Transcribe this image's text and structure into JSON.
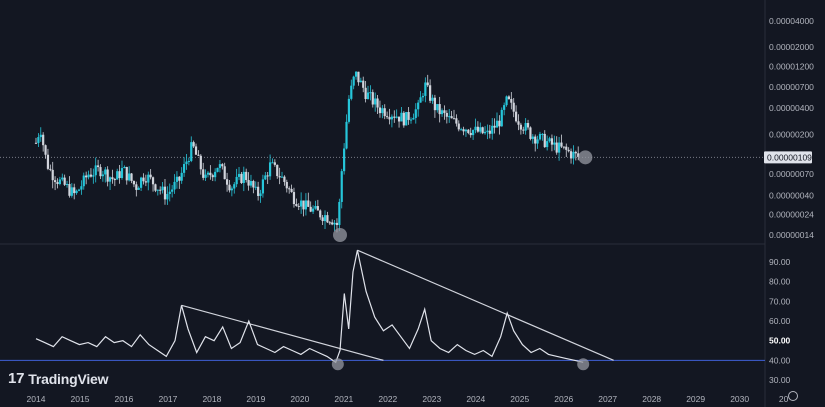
{
  "brand": {
    "logo_text": "TradingView",
    "logo_mark": "17"
  },
  "last_price_label": "0.00000109",
  "colors": {
    "bg": "#131722",
    "up": "#26c6da",
    "down": "#d1d4dc",
    "rsi_line": "#e0e3eb",
    "hline": "#3f5fd6",
    "marker": "#9598a1",
    "last_label_bg": "#e0e3eb"
  },
  "icons": {
    "settings": "gear-icon"
  },
  "chart_data": [
    {
      "type": "candlestick",
      "scale": "log",
      "price_ticks": [
        "0.00004000",
        "0.00002000",
        "0.00001200",
        "0.00000700",
        "0.00000400",
        "0.00000200",
        "0.00000109",
        "0.00000070",
        "0.00000040",
        "0.00000024",
        "0.00000014"
      ],
      "x_ticks": [
        "2014",
        "2015",
        "2016",
        "2017",
        "2018",
        "2019",
        "2020",
        "2021",
        "2022",
        "2023",
        "2024",
        "2025",
        "2026",
        "2027",
        "2028",
        "2029",
        "2030",
        "20"
      ],
      "close_trend": [
        [
          2014.0,
          1.6e-06
        ],
        [
          2014.1,
          2.5e-06
        ],
        [
          2014.2,
          1.2e-06
        ],
        [
          2014.3,
          8e-07
        ],
        [
          2014.5,
          6e-07
        ],
        [
          2014.7,
          5e-07
        ],
        [
          2014.9,
          4e-07
        ],
        [
          2015.2,
          7e-07
        ],
        [
          2015.5,
          8e-07
        ],
        [
          2015.8,
          6e-07
        ],
        [
          2016.0,
          8e-07
        ],
        [
          2016.3,
          5e-07
        ],
        [
          2016.5,
          7e-07
        ],
        [
          2016.8,
          5e-07
        ],
        [
          2017.0,
          4e-07
        ],
        [
          2017.3,
          6e-07
        ],
        [
          2017.6,
          1.5e-06
        ],
        [
          2017.9,
          6e-07
        ],
        [
          2018.2,
          9e-07
        ],
        [
          2018.5,
          5e-07
        ],
        [
          2018.8,
          7e-07
        ],
        [
          2019.1,
          4e-07
        ],
        [
          2019.4,
          9e-07
        ],
        [
          2019.7,
          6e-07
        ],
        [
          2019.9,
          4e-07
        ],
        [
          2020.2,
          3e-07
        ],
        [
          2020.5,
          2.5e-07
        ],
        [
          2020.8,
          2.2e-07
        ],
        [
          2020.95,
          1.8e-07
        ],
        [
          2021.05,
          9e-07
        ],
        [
          2021.2,
          5e-06
        ],
        [
          2021.35,
          1e-05
        ],
        [
          2021.6,
          6e-06
        ],
        [
          2021.9,
          4e-06
        ],
        [
          2022.2,
          3.5e-06
        ],
        [
          2022.5,
          3e-06
        ],
        [
          2022.8,
          4e-06
        ],
        [
          2022.95,
          7.5e-06
        ],
        [
          2023.2,
          4e-06
        ],
        [
          2023.5,
          3e-06
        ],
        [
          2023.8,
          2.5e-06
        ],
        [
          2024.1,
          2.2e-06
        ],
        [
          2024.4,
          2e-06
        ],
        [
          2024.7,
          3e-06
        ],
        [
          2024.85,
          5e-06
        ],
        [
          2025.1,
          3e-06
        ],
        [
          2025.4,
          2e-06
        ],
        [
          2025.7,
          1.7e-06
        ],
        [
          2025.9,
          1.5e-06
        ],
        [
          2026.2,
          1.3e-06
        ],
        [
          2026.5,
          1.09e-06
        ]
      ],
      "markers": [
        [
          2021.0,
          1.4e-07
        ],
        [
          2026.65,
          1.09e-06
        ]
      ]
    },
    {
      "type": "line",
      "name": "",
      "y_ticks": [
        "90.00",
        "80.00",
        "70.00",
        "60.00",
        "50.00",
        "40.00",
        "30.00"
      ],
      "ylim": [
        25,
        95
      ],
      "x": [
        2014.0,
        2014.2,
        2014.4,
        2014.6,
        2014.8,
        2015.0,
        2015.2,
        2015.4,
        2015.6,
        2015.8,
        2016.0,
        2016.2,
        2016.4,
        2016.6,
        2016.8,
        2017.0,
        2017.2,
        2017.35,
        2017.5,
        2017.7,
        2017.9,
        2018.1,
        2018.3,
        2018.5,
        2018.7,
        2018.9,
        2019.1,
        2019.3,
        2019.5,
        2019.7,
        2019.9,
        2020.1,
        2020.3,
        2020.5,
        2020.7,
        2020.9,
        2021.0,
        2021.1,
        2021.2,
        2021.3,
        2021.4,
        2021.6,
        2021.8,
        2022.0,
        2022.2,
        2022.4,
        2022.6,
        2022.8,
        2022.95,
        2023.1,
        2023.3,
        2023.5,
        2023.7,
        2023.9,
        2024.1,
        2024.3,
        2024.5,
        2024.7,
        2024.85,
        2025.0,
        2025.2,
        2025.4,
        2025.6,
        2025.8,
        2026.0,
        2026.2,
        2026.4,
        2026.6
      ],
      "values": [
        51,
        49,
        47,
        52,
        50,
        48,
        49,
        47,
        52,
        49,
        50,
        47,
        53,
        48,
        45,
        42,
        50,
        68,
        56,
        44,
        52,
        50,
        57,
        46,
        49,
        60,
        48,
        46,
        44,
        47,
        45,
        43,
        46,
        44,
        42,
        39,
        45,
        74,
        56,
        85,
        96,
        75,
        62,
        55,
        58,
        52,
        46,
        56,
        66,
        50,
        46,
        44,
        48,
        45,
        43,
        45,
        42,
        52,
        64,
        55,
        48,
        44,
        46,
        43,
        42,
        41,
        40,
        39
      ],
      "hline": 40,
      "trendlines": [
        [
          [
            2017.35,
            68
          ],
          [
            2022.0,
            40
          ]
        ],
        [
          [
            2021.4,
            96
          ],
          [
            2027.3,
            40
          ]
        ]
      ],
      "markers": [
        [
          2020.95,
          38
        ],
        [
          2026.6,
          38
        ]
      ]
    }
  ]
}
